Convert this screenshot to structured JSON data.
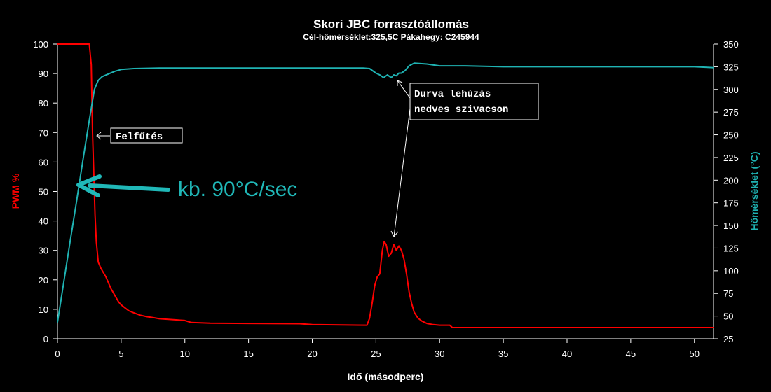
{
  "chart_data": {
    "type": "line",
    "title": "Skori JBC forrasztóállomás",
    "subtitle": "Cél-hőmérséklet:325,5C Pákahegy: C245944",
    "xlabel": "Idő (másodperc)",
    "ylabel_left": "PWM %",
    "ylabel_right": "Hőmérséklet (°C)",
    "xlim": [
      0,
      51.5
    ],
    "ylim_left": [
      0,
      100
    ],
    "ylim_right": [
      25,
      350
    ],
    "x_ticks": [
      0,
      5,
      10,
      15,
      20,
      25,
      30,
      35,
      40,
      45,
      50
    ],
    "y_ticks_left": [
      0,
      10,
      20,
      30,
      40,
      50,
      60,
      70,
      80,
      90,
      100
    ],
    "y_ticks_right": [
      25,
      50,
      75,
      100,
      125,
      150,
      175,
      200,
      225,
      250,
      275,
      300,
      325,
      350
    ],
    "grid": false,
    "colors": {
      "pwm": "#ff0000",
      "temperature": "#1fb3b3",
      "axes": "#ffffff",
      "background": "#000000",
      "annotation_big": "#20b8b8"
    },
    "series": [
      {
        "axis": "left",
        "color": "#ff0000",
        "x": [
          0,
          0.5,
          1,
          1.5,
          2,
          2.5,
          2.65,
          2.75,
          2.85,
          2.95,
          3.05,
          3.2,
          3.4,
          3.6,
          3.8,
          4.0,
          4.2,
          4.4,
          4.6,
          4.8,
          5.0,
          5.3,
          5.6,
          6.0,
          6.5,
          7.0,
          7.5,
          8.0,
          9.0,
          10.0,
          10.5,
          12,
          15,
          19,
          20,
          24.3,
          24.5,
          24.7,
          24.9,
          25.1,
          25.3,
          25.5,
          25.65,
          25.8,
          26.0,
          26.2,
          26.4,
          26.6,
          26.8,
          27.0,
          27.2,
          27.4,
          27.6,
          27.8,
          28.0,
          28.3,
          28.6,
          29.0,
          29.5,
          30.0,
          30.8,
          31.0,
          35,
          40,
          45,
          50,
          51.5
        ],
        "y": [
          100,
          100,
          100,
          100,
          100,
          100,
          93,
          70,
          56,
          42,
          33,
          26,
          24,
          22.5,
          21,
          19,
          17,
          15.5,
          14,
          12.5,
          11.5,
          10.5,
          9.5,
          8.8,
          8,
          7.5,
          7.2,
          6.8,
          6.5,
          6.2,
          5.5,
          5.3,
          5.2,
          5.1,
          4.8,
          4.6,
          7,
          12,
          18,
          21,
          22,
          30,
          33,
          32,
          28,
          29,
          32,
          30,
          31.5,
          30,
          27,
          22,
          16,
          12,
          9,
          7,
          6,
          5.2,
          4.8,
          4.6,
          4.6,
          3.8,
          3.8,
          3.8,
          3.8,
          3.8,
          3.8
        ]
      },
      {
        "axis": "right",
        "color": "#1fb3b3",
        "x": [
          0,
          0.5,
          1,
          1.5,
          2,
          2.5,
          2.9,
          3.2,
          3.5,
          4.0,
          4.5,
          5.0,
          6.0,
          8.0,
          10,
          15,
          20,
          24,
          24.5,
          25.0,
          25.3,
          25.6,
          25.9,
          26.2,
          26.4,
          26.6,
          26.8,
          27.0,
          27.3,
          27.6,
          28,
          29,
          30,
          32,
          35,
          40,
          45,
          50,
          51.5
        ],
        "y": [
          43,
          88,
          133,
          177,
          222,
          266,
          300,
          310,
          314,
          317,
          320,
          322,
          323,
          323.5,
          323.5,
          323.5,
          323.5,
          323.5,
          323,
          318,
          316,
          313,
          316,
          313,
          316,
          315,
          318,
          318,
          321,
          326,
          329,
          328,
          326,
          326,
          325,
          325,
          325,
          325,
          324
        ]
      }
    ],
    "annotations": [
      {
        "text": "Felfűtés"
      },
      {
        "text_lines": [
          "Durva lehúzás",
          "nedves szivacson"
        ]
      },
      {
        "text": "kb. 90°C/sec"
      }
    ]
  }
}
